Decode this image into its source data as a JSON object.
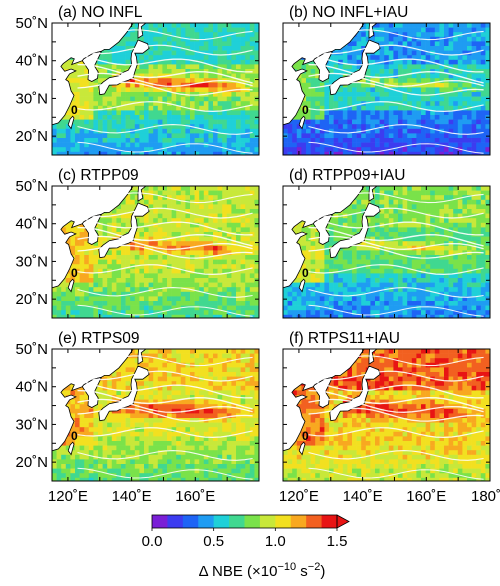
{
  "chart_data": {
    "type": "heatmap",
    "panels": [
      {
        "label": "(a) NO INFL",
        "zero_label": "0"
      },
      {
        "label": "(b) NO INFL+IAU",
        "zero_label": "0"
      },
      {
        "label": "(c) RTPP09",
        "zero_label": "0"
      },
      {
        "label": "(d) RTPP09+IAU",
        "zero_label": "0"
      },
      {
        "label": "(e) RTPS09",
        "zero_label": "0"
      },
      {
        "label": "(f) RTPS11+IAU",
        "zero_label": "0"
      }
    ],
    "x_ticks_left": [
      "120˚E",
      "140˚E",
      "160˚E"
    ],
    "x_ticks_right": [
      "120˚E",
      "140˚E",
      "160˚E",
      "180˚"
    ],
    "y_ticks": [
      "50˚N",
      "40˚N",
      "30˚N",
      "20˚N"
    ],
    "xlim": [
      115,
      180
    ],
    "ylim": [
      15,
      50
    ],
    "colorbar": {
      "ticks": [
        "0.0",
        "0.5",
        "1.0",
        "1.5"
      ],
      "range": [
        0.0,
        1.5
      ],
      "label_main": "Δ NBE (×10",
      "label_exp1": "−10",
      "label_mid": " s",
      "label_exp2": "−2",
      "label_end": ")",
      "colors": [
        "#7a1fd6",
        "#3c3cf0",
        "#1e64f5",
        "#1f9cf2",
        "#1fd0d8",
        "#40d890",
        "#7ae24a",
        "#c8e83a",
        "#f2e020",
        "#f8a820",
        "#f26020",
        "#e81414"
      ]
    }
  }
}
